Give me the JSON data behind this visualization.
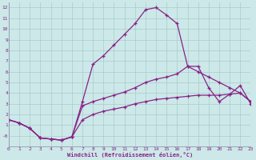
{
  "background_color": "#cce8e8",
  "grid_color": "#aacccc",
  "line_color": "#882288",
  "xlabel": "Windchill (Refroidissement éolien,°C)",
  "xlim": [
    0,
    23
  ],
  "ylim": [
    -1.0,
    12.5
  ],
  "xticks": [
    0,
    1,
    2,
    3,
    4,
    5,
    6,
    7,
    8,
    9,
    10,
    11,
    12,
    13,
    14,
    15,
    16,
    17,
    18,
    19,
    20,
    21,
    22,
    23
  ],
  "yticks": [
    0,
    1,
    2,
    3,
    4,
    5,
    6,
    7,
    8,
    9,
    10,
    11,
    12
  ],
  "ytick_labels": [
    "-0",
    "1",
    "2",
    "3",
    "4",
    "5",
    "6",
    "7",
    "8",
    "9",
    "10",
    "11",
    "12"
  ],
  "curve1_x": [
    0,
    1,
    2,
    3,
    4,
    5,
    6,
    7,
    8,
    9,
    10,
    11,
    12,
    13,
    14,
    15,
    16,
    17,
    18,
    19,
    20,
    21,
    22,
    23
  ],
  "curve1_y": [
    1.5,
    1.2,
    0.7,
    -0.2,
    -0.3,
    -0.4,
    -0.1,
    3.2,
    6.7,
    7.5,
    8.5,
    9.5,
    10.5,
    11.8,
    12.0,
    11.3,
    10.5,
    6.5,
    6.5,
    4.5,
    3.2,
    3.9,
    4.7,
    3.0
  ],
  "curve2_x": [
    0,
    1,
    2,
    3,
    4,
    5,
    6,
    7,
    8,
    9,
    10,
    11,
    12,
    13,
    14,
    15,
    16,
    17,
    18,
    19,
    20,
    21,
    22,
    23
  ],
  "curve2_y": [
    1.5,
    1.2,
    0.7,
    -0.2,
    -0.3,
    -0.4,
    -0.1,
    2.8,
    3.2,
    3.5,
    3.8,
    4.1,
    4.5,
    5.0,
    5.3,
    5.5,
    5.8,
    6.5,
    6.0,
    5.5,
    5.0,
    4.5,
    4.0,
    3.2
  ],
  "curve3_x": [
    0,
    1,
    2,
    3,
    4,
    5,
    6,
    7,
    8,
    9,
    10,
    11,
    12,
    13,
    14,
    15,
    16,
    17,
    18,
    19,
    20,
    21,
    22,
    23
  ],
  "curve3_y": [
    1.5,
    1.2,
    0.7,
    -0.2,
    -0.3,
    -0.4,
    -0.1,
    1.5,
    2.0,
    2.3,
    2.5,
    2.7,
    3.0,
    3.2,
    3.4,
    3.5,
    3.6,
    3.7,
    3.8,
    3.8,
    3.8,
    3.9,
    4.0,
    3.2
  ]
}
